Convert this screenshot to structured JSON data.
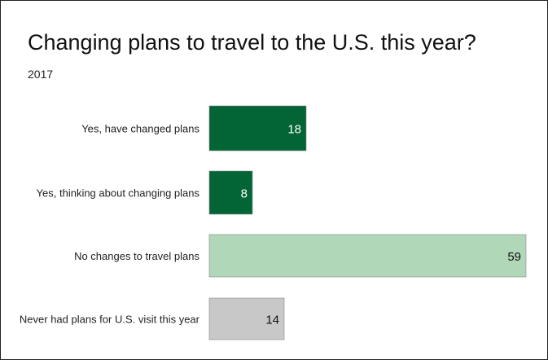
{
  "title": "Changing plans to travel to the U.S. this year?",
  "subtitle": "2017",
  "chart_data": {
    "type": "bar",
    "orientation": "horizontal",
    "title": "Changing plans to travel to the U.S. this year?",
    "subtitle": "2017",
    "categories": [
      "Yes, have changed plans",
      "Yes, thinking about changing plans",
      "No changes to travel plans",
      "Never had plans for U.S. visit this year"
    ],
    "values": [
      18,
      8,
      59,
      14
    ],
    "colors": [
      "#036535",
      "#036535",
      "#b0d8b8",
      "#c8c8c8"
    ],
    "label_colors": [
      "#ffffff",
      "#ffffff",
      "#111111",
      "#111111"
    ],
    "xlim": [
      0,
      59
    ],
    "grid": false,
    "legend": "none"
  }
}
